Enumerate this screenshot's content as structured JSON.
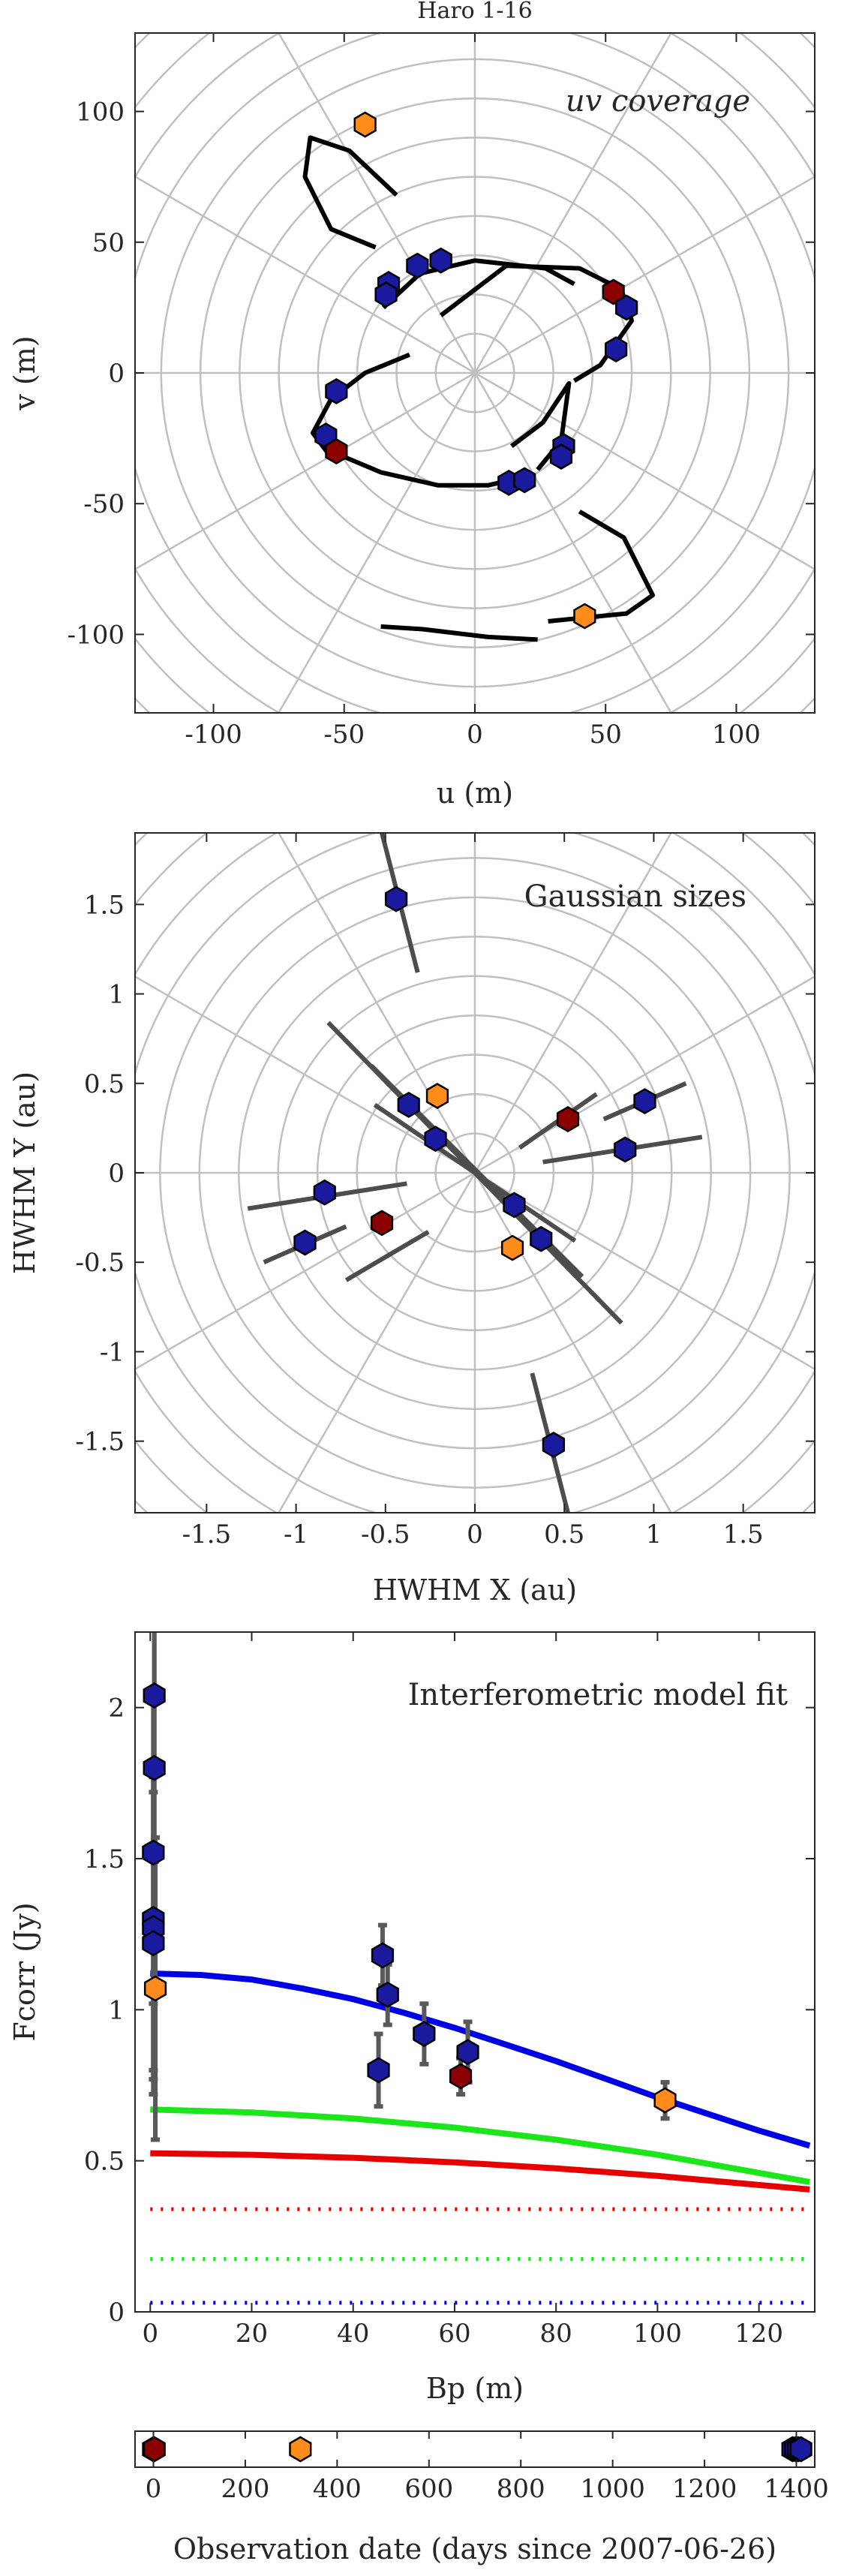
{
  "chart_data": [
    {
      "type": "scatter",
      "title": "Haro 1-16",
      "annotation": "uv coverage",
      "xlabel": "u (m)",
      "ylabel": "v (m)",
      "xlim": [
        -130,
        130
      ],
      "ylim": [
        -130,
        130
      ],
      "xticks": [
        -100,
        -50,
        0,
        50,
        100
      ],
      "yticks": [
        -100,
        -50,
        0,
        50,
        100
      ],
      "xtick_labels": [
        "-100",
        "-50",
        "0",
        "50",
        "100"
      ],
      "ytick_labels": [
        "-100",
        "-50",
        "0",
        "50",
        "100"
      ],
      "grid": "polar",
      "colors": {
        "blue": "#1a1a9e",
        "red": "#8b0000",
        "orange": "#ff8c1a",
        "track": "#000000",
        "grid": "#c0c0c0"
      },
      "tracks": [
        {
          "x": [
            -30,
            -48,
            -63,
            -65,
            -55,
            -38
          ],
          "y": [
            68,
            85,
            90,
            75,
            55,
            48
          ]
        },
        {
          "x": [
            -13,
            12,
            40,
            56,
            60,
            48,
            38
          ],
          "y": [
            22,
            41,
            40,
            32,
            20,
            3,
            -3
          ]
        },
        {
          "x": [
            -35,
            -21,
            0,
            27,
            38
          ],
          "y": [
            25,
            38,
            43,
            40,
            34
          ]
        },
        {
          "x": [
            -25,
            -42,
            -55,
            -62,
            -56
          ],
          "y": [
            7,
            0,
            -10,
            -23,
            -31
          ]
        },
        {
          "x": [
            -55,
            -36,
            -14,
            5,
            18
          ],
          "y": [
            -30,
            -38,
            -43,
            -43,
            -40
          ]
        },
        {
          "x": [
            40,
            57,
            68,
            58,
            28
          ],
          "y": [
            -53,
            -63,
            -85,
            -92,
            -95
          ]
        },
        {
          "x": [
            24,
            5,
            -20,
            -36
          ],
          "y": [
            -102,
            -101,
            -98,
            -97
          ]
        },
        {
          "x": [
            14,
            26,
            36,
            33,
            24
          ],
          "y": [
            -28,
            -19,
            -4,
            -26,
            -37
          ]
        }
      ],
      "points": [
        {
          "u": -42,
          "v": 95,
          "color": "orange"
        },
        {
          "u": -13,
          "v": 43,
          "color": "blue"
        },
        {
          "u": -22,
          "v": 41,
          "color": "blue"
        },
        {
          "u": -33,
          "v": 34,
          "color": "blue"
        },
        {
          "u": -34,
          "v": 30,
          "color": "blue"
        },
        {
          "u": 53,
          "v": 31,
          "color": "red"
        },
        {
          "u": 58,
          "v": 25,
          "color": "blue"
        },
        {
          "u": 54,
          "v": 9,
          "color": "blue"
        },
        {
          "u": -53,
          "v": -7,
          "color": "blue"
        },
        {
          "u": -57,
          "v": -24,
          "color": "blue"
        },
        {
          "u": -53,
          "v": -30,
          "color": "red"
        },
        {
          "u": 13,
          "v": -42,
          "color": "blue"
        },
        {
          "u": 19,
          "v": -41,
          "color": "blue"
        },
        {
          "u": 34,
          "v": -28,
          "color": "blue"
        },
        {
          "u": 33,
          "v": -32,
          "color": "blue"
        },
        {
          "u": 42,
          "v": -93,
          "color": "orange"
        }
      ]
    },
    {
      "type": "scatter",
      "annotation": "Gaussian sizes",
      "xlabel": "HWHM X (au)",
      "ylabel": "HWHM Y (au)",
      "xlim": [
        -1.9,
        1.9
      ],
      "ylim": [
        -1.9,
        1.9
      ],
      "xticks": [
        -1.5,
        -1,
        -0.5,
        0,
        0.5,
        1,
        1.5
      ],
      "yticks": [
        -1.5,
        -1,
        -0.5,
        0,
        0.5,
        1,
        1.5
      ],
      "xtick_labels": [
        "-1.5",
        "-1",
        "-0.5",
        "0",
        "0.5",
        "1",
        "1.5"
      ],
      "ytick_labels": [
        "-1.5",
        "-1",
        "-0.5",
        "0",
        "0.5",
        "1",
        "1.5"
      ],
      "grid": "polar",
      "colors": {
        "blue": "#1a1a9e",
        "red": "#8b0000",
        "orange": "#ff8c1a",
        "segment": "#4d4d4d",
        "grid": "#c0c0c0"
      },
      "segments": [
        {
          "x": [
            -0.52,
            -0.32
          ],
          "y": [
            1.9,
            1.12
          ]
        },
        {
          "x": [
            0.32,
            0.52
          ],
          "y": [
            -1.12,
            -1.9
          ]
        },
        {
          "x": [
            -0.82,
            0.82
          ],
          "y": [
            0.84,
            -0.84
          ]
        },
        {
          "x": [
            -0.58,
            0.6
          ],
          "y": [
            0.6,
            -0.58
          ]
        },
        {
          "x": [
            -0.56,
            0.56
          ],
          "y": [
            0.38,
            -0.38
          ]
        },
        {
          "x": [
            0.25,
            0.68
          ],
          "y": [
            0.14,
            0.44
          ]
        },
        {
          "x": [
            0.72,
            1.18
          ],
          "y": [
            0.3,
            0.5
          ]
        },
        {
          "x": [
            0.38,
            1.27
          ],
          "y": [
            0.06,
            0.2
          ]
        },
        {
          "x": [
            -1.27,
            -0.38
          ],
          "y": [
            -0.2,
            -0.06
          ]
        },
        {
          "x": [
            -1.18,
            -0.72
          ],
          "y": [
            -0.5,
            -0.3
          ]
        },
        {
          "x": [
            -0.72,
            -0.26
          ],
          "y": [
            -0.6,
            -0.33
          ]
        }
      ],
      "points": [
        {
          "x": -0.44,
          "y": 1.53,
          "color": "blue"
        },
        {
          "x": -0.37,
          "y": 0.38,
          "color": "blue"
        },
        {
          "x": -0.21,
          "y": 0.43,
          "color": "orange"
        },
        {
          "x": -0.22,
          "y": 0.19,
          "color": "blue"
        },
        {
          "x": 0.52,
          "y": 0.3,
          "color": "red"
        },
        {
          "x": 0.95,
          "y": 0.4,
          "color": "blue"
        },
        {
          "x": 0.84,
          "y": 0.13,
          "color": "blue"
        },
        {
          "x": -0.84,
          "y": -0.11,
          "color": "blue"
        },
        {
          "x": -0.95,
          "y": -0.39,
          "color": "blue"
        },
        {
          "x": -0.52,
          "y": -0.28,
          "color": "red"
        },
        {
          "x": 0.22,
          "y": -0.18,
          "color": "blue"
        },
        {
          "x": 0.37,
          "y": -0.37,
          "color": "blue"
        },
        {
          "x": 0.21,
          "y": -0.42,
          "color": "orange"
        },
        {
          "x": 0.44,
          "y": -1.52,
          "color": "blue"
        }
      ]
    },
    {
      "type": "scatter",
      "annotation": "Interferometric model fit",
      "xlabel": "Bp (m)",
      "ylabel": "Fcorr (Jy)",
      "xlim": [
        -3,
        131
      ],
      "ylim": [
        0,
        2.25
      ],
      "xticks": [
        0,
        20,
        40,
        60,
        80,
        100,
        120
      ],
      "yticks": [
        0,
        0.5,
        1,
        1.5,
        2
      ],
      "xtick_labels": [
        "0",
        "20",
        "40",
        "60",
        "80",
        "100",
        "120"
      ],
      "ytick_labels": [
        "0",
        "0.5",
        "1",
        "1.5",
        "2"
      ],
      "grid": "off",
      "colors": {
        "blue": "#1a1a9e",
        "red": "#8b0000",
        "orange": "#ff8c1a",
        "errorbar": "#595959",
        "model_total": "#0000e6",
        "model_green": "#1ae61a",
        "model_red": "#e60000"
      },
      "points": [
        {
          "x": 0.8,
          "y": 2.04,
          "err": 0.55,
          "color": "blue"
        },
        {
          "x": 0.8,
          "y": 1.8,
          "err": 0.5,
          "color": "blue"
        },
        {
          "x": 0.6,
          "y": 1.52,
          "err": 0.5,
          "color": "blue"
        },
        {
          "x": 0.6,
          "y": 1.3,
          "err": 0.5,
          "color": "blue"
        },
        {
          "x": 0.6,
          "y": 1.27,
          "err": 0.5,
          "color": "blue"
        },
        {
          "x": 0.6,
          "y": 1.22,
          "err": 0.5,
          "color": "blue"
        },
        {
          "x": 1.0,
          "y": 1.07,
          "err": 0.5,
          "color": "orange"
        },
        {
          "x": 45.0,
          "y": 0.8,
          "err": 0.12,
          "color": "blue"
        },
        {
          "x": 45.8,
          "y": 1.18,
          "err": 0.1,
          "color": "blue"
        },
        {
          "x": 46.8,
          "y": 1.05,
          "err": 0.1,
          "color": "blue"
        },
        {
          "x": 54.0,
          "y": 0.92,
          "err": 0.1,
          "color": "blue"
        },
        {
          "x": 61.2,
          "y": 0.78,
          "err": 0.06,
          "color": "red"
        },
        {
          "x": 62.6,
          "y": 0.86,
          "err": 0.1,
          "color": "blue"
        },
        {
          "x": 101.5,
          "y": 0.7,
          "err": 0.06,
          "color": "orange"
        }
      ],
      "series": [
        {
          "style": "solid",
          "color": "model_total",
          "x": [
            0,
            10,
            20,
            30,
            40,
            50,
            60,
            70,
            80,
            90,
            100,
            110,
            120,
            130
          ],
          "y": [
            1.12,
            1.115,
            1.1,
            1.07,
            1.035,
            0.99,
            0.94,
            0.885,
            0.83,
            0.77,
            0.71,
            0.655,
            0.6,
            0.55
          ]
        },
        {
          "style": "solid",
          "color": "model_green",
          "x": [
            0,
            20,
            40,
            60,
            80,
            100,
            120,
            130
          ],
          "y": [
            0.67,
            0.66,
            0.64,
            0.61,
            0.57,
            0.52,
            0.46,
            0.43
          ]
        },
        {
          "style": "solid",
          "color": "model_red",
          "x": [
            0,
            20,
            40,
            60,
            80,
            100,
            120,
            130
          ],
          "y": [
            0.525,
            0.52,
            0.51,
            0.495,
            0.475,
            0.45,
            0.42,
            0.405
          ]
        },
        {
          "style": "dotted",
          "color": "model_red",
          "x": [
            0,
            130
          ],
          "y": [
            0.34,
            0.34
          ]
        },
        {
          "style": "dotted",
          "color": "model_green",
          "x": [
            0,
            130
          ],
          "y": [
            0.175,
            0.175
          ]
        },
        {
          "style": "dotted",
          "color": "model_total",
          "x": [
            0,
            130
          ],
          "y": [
            0.03,
            0.03
          ]
        }
      ]
    },
    {
      "type": "scatter",
      "xlabel": "Observation date (days since 2007-06-26)",
      "xlim": [
        -40,
        1440
      ],
      "xticks": [
        0,
        200,
        400,
        600,
        800,
        1000,
        1200,
        1400
      ],
      "xtick_labels": [
        "0",
        "200",
        "400",
        "600",
        "800",
        "1000",
        "1200",
        "1400"
      ],
      "colors": {
        "blue": "#1a1a9e",
        "red": "#8b0000",
        "orange": "#ff8c1a"
      },
      "points": [
        {
          "x": 0,
          "color": "blue"
        },
        {
          "x": 2,
          "color": "red"
        },
        {
          "x": 320,
          "color": "orange"
        },
        {
          "x": 1392,
          "color": "blue"
        },
        {
          "x": 1398,
          "color": "blue"
        },
        {
          "x": 1404,
          "color": "blue"
        },
        {
          "x": 1410,
          "color": "blue"
        }
      ]
    }
  ]
}
